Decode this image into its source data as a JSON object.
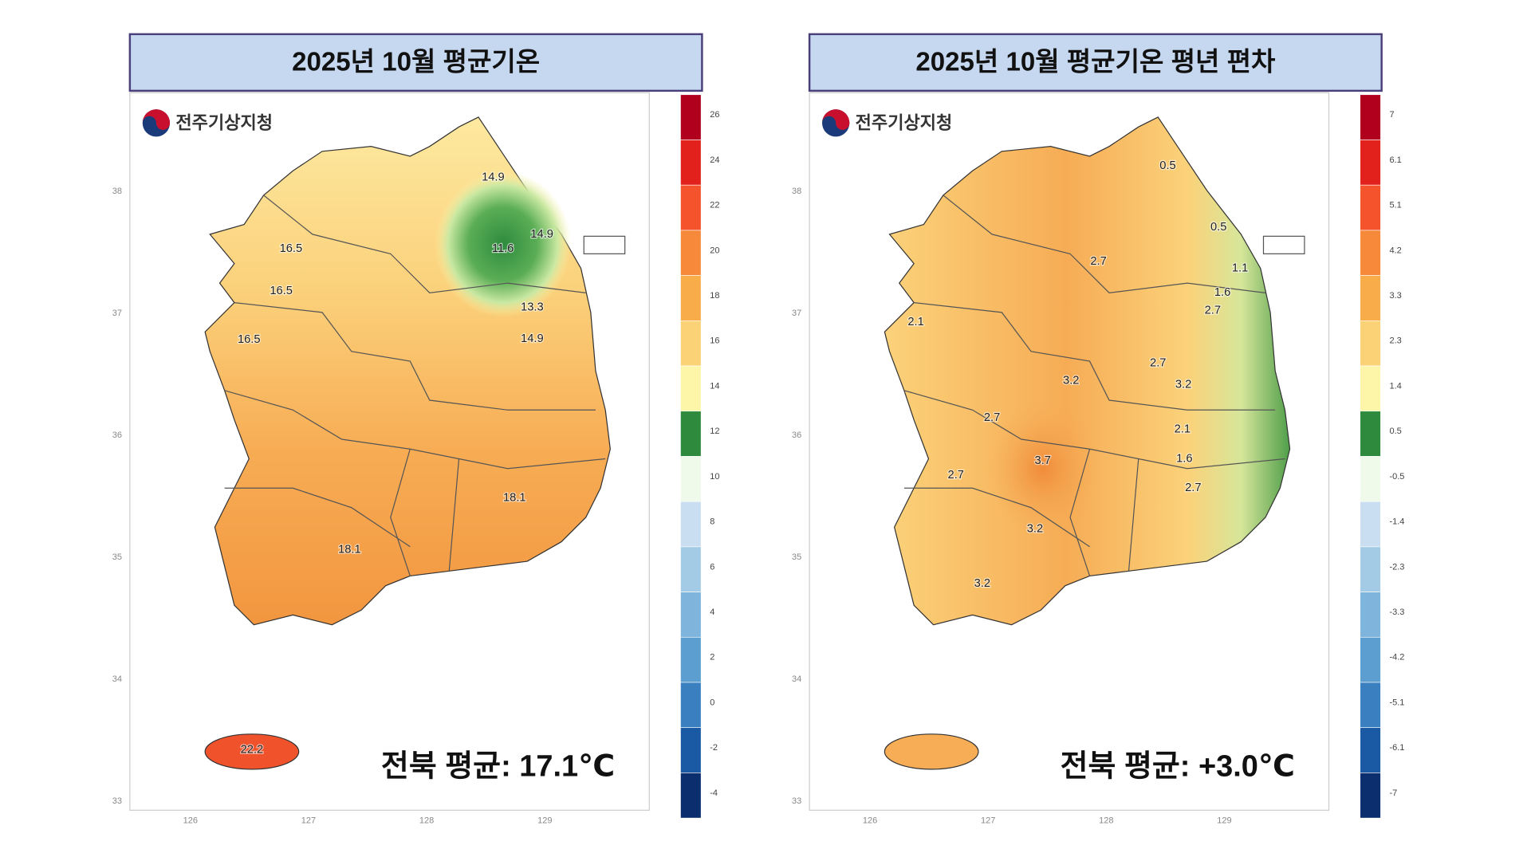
{
  "panels": [
    {
      "title": "2025년 10월 평균기온",
      "agency": "전주기상지청",
      "summary": "전북 평균: 17.1℃",
      "lat_ticks": [
        38,
        37,
        36,
        35,
        34,
        33
      ],
      "lon_ticks": [
        126,
        127,
        128,
        129
      ],
      "colorbar": {
        "labels": [
          26,
          24,
          22,
          20,
          18,
          16,
          14,
          12,
          10,
          8,
          6,
          4,
          2,
          0,
          -2,
          -4
        ],
        "colors": [
          "#b0001e",
          "#e3211c",
          "#f4532b",
          "#f7893a",
          "#f9ac4a",
          "#fcd277",
          "#fdf6a8",
          "#2e8b3e",
          "#effaea",
          "#c9def0",
          "#a4cbe6",
          "#7fb5dd",
          "#5b9ecf",
          "#3a7fc0",
          "#1a5aa5",
          "#0b2f6e"
        ]
      },
      "contours": [
        14.9,
        11.6,
        14.9,
        13.3,
        14.9,
        16.5,
        16.5,
        16.5,
        18.1,
        18.1,
        22.2
      ]
    },
    {
      "title": "2025년 10월 평균기온 평년 편차",
      "agency": "전주기상지청",
      "summary": "전북 평균: +3.0℃",
      "lat_ticks": [
        38,
        37,
        36,
        35,
        34,
        33
      ],
      "lon_ticks": [
        126,
        127,
        128,
        129
      ],
      "colorbar": {
        "labels": [
          7,
          6.1,
          5.1,
          4.2,
          3.3,
          2.3,
          1.4,
          0.5,
          -0.5,
          -1.4,
          -2.3,
          -3.3,
          -4.2,
          -5.1,
          -6.1,
          -7
        ],
        "colors": [
          "#b0001e",
          "#e3211c",
          "#f4532b",
          "#f7893a",
          "#f9ac4a",
          "#fcd277",
          "#fdf6a8",
          "#2e8b3e",
          "#effaea",
          "#c9def0",
          "#a4cbe6",
          "#7fb5dd",
          "#5b9ecf",
          "#3a7fc0",
          "#1a5aa5",
          "#0b2f6e"
        ]
      },
      "contours": [
        0.5,
        0.5,
        1.1,
        1.6,
        2.7,
        2.7,
        2.7,
        3.2,
        3.2,
        2.1,
        1.6,
        2.7,
        2.7,
        3.7,
        2.7,
        3.2,
        3.2,
        2.1
      ]
    }
  ]
}
